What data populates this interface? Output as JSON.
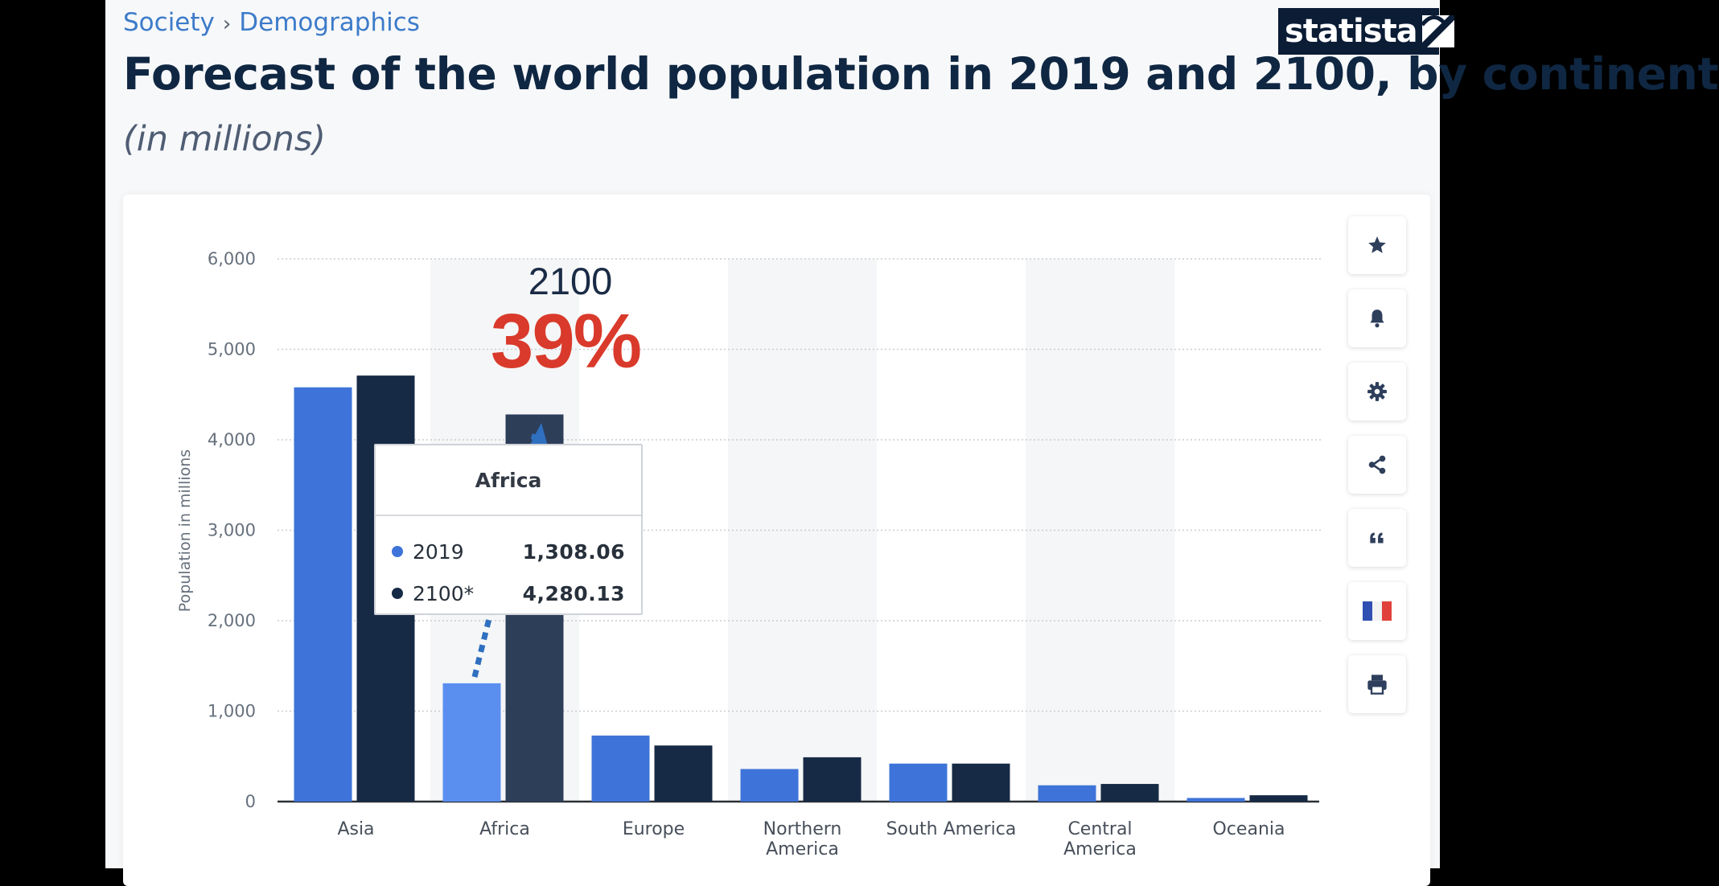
{
  "breadcrumb": {
    "items": [
      "Society",
      "Demographics"
    ],
    "separator": "›"
  },
  "header": {
    "title": "Forecast of the world population in 2019 and 2100, by continent",
    "subtitle": "(in millions)"
  },
  "logo": {
    "text": "statista"
  },
  "toolbar": {
    "items": [
      {
        "name": "favorite",
        "icon": "star-icon"
      },
      {
        "name": "notification",
        "icon": "bell-icon"
      },
      {
        "name": "settings",
        "icon": "gear-icon"
      },
      {
        "name": "share",
        "icon": "share-icon"
      },
      {
        "name": "cite",
        "icon": "quote-icon"
      },
      {
        "name": "language",
        "icon": "french-flag-icon"
      },
      {
        "name": "print",
        "icon": "printer-icon"
      }
    ]
  },
  "tooltip": {
    "title": "Africa",
    "rows": [
      {
        "label": "2019",
        "value": "1,308.06"
      },
      {
        "label": "2100*",
        "value": "4,280.13"
      }
    ]
  },
  "annotation": {
    "year": "2100",
    "percent": "39%"
  },
  "colors": {
    "series_2019": "#3e74d9",
    "series_2100": "#172a45",
    "hover_2019": "#5a8ff0",
    "hover_2100": "#2d3e59",
    "annotation_red": "#d93a2b",
    "arrow": "#2f6fbf"
  },
  "chart_data": {
    "type": "bar",
    "title": "Forecast of the world population in 2019 and 2100, by continent",
    "ylabel": "Population in millions",
    "xlabel": "",
    "ylim": [
      0,
      6000
    ],
    "yticks": [
      0,
      1000,
      2000,
      3000,
      4000,
      5000,
      6000
    ],
    "ytick_labels": [
      "0",
      "1,000",
      "2,000",
      "3,000",
      "4,000",
      "5,000",
      "6,000"
    ],
    "grid": true,
    "categories": [
      "Asia",
      "Africa",
      "Europe",
      "Northern America",
      "South America",
      "Central America",
      "Oceania"
    ],
    "category_lines": [
      [
        "Asia"
      ],
      [
        "Africa"
      ],
      [
        "Europe"
      ],
      [
        "Northern",
        "America"
      ],
      [
        "South America"
      ],
      [
        "Central",
        "America"
      ],
      [
        "Oceania"
      ]
    ],
    "highlighted_category": "Africa",
    "series": [
      {
        "name": "2019",
        "values": [
          4580,
          1308.06,
          730,
          360,
          420,
          180,
          40
        ]
      },
      {
        "name": "2100*",
        "values": [
          4710,
          4280.13,
          620,
          490,
          420,
          195,
          70
        ]
      }
    ]
  }
}
